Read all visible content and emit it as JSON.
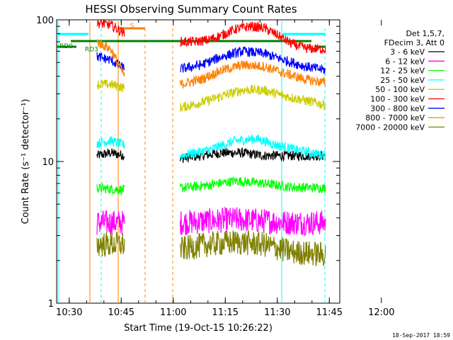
{
  "chart_data": {
    "type": "line",
    "title": "HESSI Observing Summary Count Rates",
    "xlabel": "Start Time (19-Oct-15 10:26:22)",
    "ylabel": "Count Rate (s⁻¹ detector⁻¹)",
    "ylog": true,
    "xlim_min": [
      26.37,
      108.0
    ],
    "ylim": [
      1,
      100
    ],
    "x_ticks": [
      {
        "t": 30,
        "label": "10:30"
      },
      {
        "t": 45,
        "label": "10:45"
      },
      {
        "t": 60,
        "label": "11:00"
      },
      {
        "t": 75,
        "label": "11:15"
      },
      {
        "t": 90,
        "label": "11:30"
      },
      {
        "t": 105,
        "label": "11:45"
      },
      {
        "t": 120,
        "label": "12:00"
      }
    ],
    "y_ticks": [
      {
        "v": 1,
        "label": "1"
      },
      {
        "v": 10,
        "label": "10"
      },
      {
        "v": 100,
        "label": "100"
      }
    ],
    "legend_header": [
      "Det 1,5,7,",
      "FDecim 3, Att 0"
    ],
    "legend_position": "right",
    "series": [
      {
        "name": "3 - 6 keV",
        "color": "#000000",
        "segments": [
          [
            [
              38,
              11
            ],
            [
              42,
              11.5
            ],
            [
              46,
              11
            ]
          ],
          [
            [
              62,
              10.5
            ],
            [
              68,
              11
            ],
            [
              74,
              11.5
            ],
            [
              80,
              11.5
            ],
            [
              86,
              11
            ],
            [
              92,
              11
            ],
            [
              98,
              11
            ],
            [
              104,
              11
            ]
          ]
        ]
      },
      {
        "name": "6 - 12 keV",
        "color": "#ff00ff",
        "segments": [
          [
            [
              38,
              3.7
            ],
            [
              46,
              3.7
            ]
          ],
          [
            [
              62,
              3.7
            ],
            [
              70,
              3.8
            ],
            [
              78,
              3.9
            ],
            [
              86,
              3.8
            ],
            [
              94,
              3.7
            ],
            [
              104,
              3.7
            ]
          ]
        ]
      },
      {
        "name": "12 - 25 keV",
        "color": "#00ff00",
        "segments": [
          [
            [
              38,
              6.5
            ],
            [
              46,
              6.3
            ]
          ],
          [
            [
              62,
              6.5
            ],
            [
              70,
              6.8
            ],
            [
              78,
              7.3
            ],
            [
              86,
              7.0
            ],
            [
              94,
              6.6
            ],
            [
              104,
              6.5
            ]
          ]
        ]
      },
      {
        "name": "25 - 50 keV",
        "color": "#00ffff",
        "segments": [
          [
            [
              38,
              13.5
            ],
            [
              42,
              14
            ],
            [
              46,
              13
            ]
          ],
          [
            [
              62,
              11
            ],
            [
              70,
              12
            ],
            [
              78,
              14
            ],
            [
              84,
              14.5
            ],
            [
              90,
              13
            ],
            [
              96,
              12
            ],
            [
              104,
              11
            ]
          ]
        ]
      },
      {
        "name": "50 - 100 keV",
        "color": "#cccc00",
        "segments": [
          [
            [
              38,
              35
            ],
            [
              42,
              35
            ],
            [
              46,
              33
            ]
          ],
          [
            [
              62,
              24
            ],
            [
              68,
              26
            ],
            [
              74,
              29
            ],
            [
              80,
              32
            ],
            [
              86,
              32
            ],
            [
              92,
              29
            ],
            [
              98,
              27
            ],
            [
              104,
              25
            ]
          ]
        ]
      },
      {
        "name": "100 - 300 keV",
        "color": "#ff0000",
        "segments": [
          [
            [
              38,
              95
            ],
            [
              42,
              92
            ],
            [
              46,
              80
            ]
          ],
          [
            [
              62,
              70
            ],
            [
              66,
              70
            ],
            [
              70,
              72
            ],
            [
              74,
              78
            ],
            [
              78,
              86
            ],
            [
              82,
              90
            ],
            [
              86,
              88
            ],
            [
              90,
              78
            ],
            [
              94,
              68
            ],
            [
              98,
              63
            ],
            [
              104,
              62
            ]
          ]
        ]
      },
      {
        "name": "300 - 800 keV",
        "color": "#0000ff",
        "segments": [
          [
            [
              38,
              55
            ],
            [
              42,
              52
            ],
            [
              46,
              45
            ]
          ],
          [
            [
              62,
              45
            ],
            [
              68,
              48
            ],
            [
              74,
              55
            ],
            [
              80,
              60
            ],
            [
              86,
              58
            ],
            [
              92,
              52
            ],
            [
              98,
              47
            ],
            [
              104,
              44
            ]
          ]
        ]
      },
      {
        "name": "800 - 7000 keV",
        "color": "#ff8000",
        "segments": [
          [
            [
              38,
              70
            ],
            [
              42,
              62
            ],
            [
              46,
              40
            ]
          ],
          [
            [
              62,
              35
            ],
            [
              68,
              38
            ],
            [
              74,
              44
            ],
            [
              80,
              48
            ],
            [
              86,
              47
            ],
            [
              92,
              42
            ],
            [
              98,
              38
            ],
            [
              104,
              36
            ]
          ]
        ]
      },
      {
        "name": "7000 - 20000 keV",
        "color": "#808000",
        "segments": [
          [
            [
              38,
              2.6
            ],
            [
              46,
              2.6
            ]
          ],
          [
            [
              62,
              2.4
            ],
            [
              70,
              2.6
            ],
            [
              78,
              2.7
            ],
            [
              86,
              2.6
            ],
            [
              94,
              2.3
            ],
            [
              104,
              2.2
            ]
          ]
        ]
      }
    ],
    "annotations": [
      {
        "label": "RD0",
        "color": "#008000",
        "t": 27.2,
        "v": 63
      },
      {
        "label": "RD3",
        "color": "#008000",
        "t": 34.5,
        "v": 60
      },
      {
        "label": "S",
        "color": "#ff8000",
        "t": 47.5,
        "v": 88
      }
    ],
    "timestamp": "18-Sep-2017 18:59"
  }
}
